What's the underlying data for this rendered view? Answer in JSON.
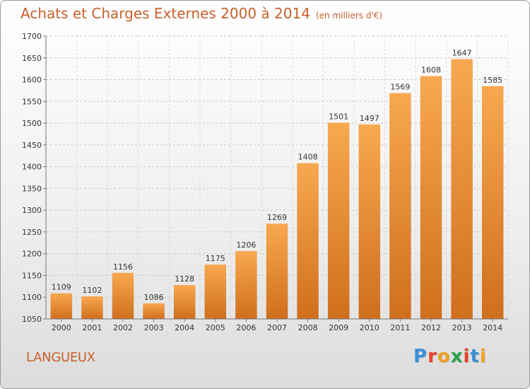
{
  "header": {
    "title": "Achats et Charges Externes 2000 à 2014",
    "subtitle": "(en milliers d'€)"
  },
  "footer": {
    "commune": "LANGUEUX",
    "logo_text": "Proxiti",
    "logo_colors": [
      "#3a8fd8",
      "#e8402a",
      "#f0a020",
      "#2aa04a",
      "#e8402a",
      "#3a8fd8",
      "#f0a020"
    ]
  },
  "chart_data": {
    "type": "bar",
    "categories": [
      "2000",
      "2001",
      "2002",
      "2003",
      "2004",
      "2005",
      "2006",
      "2007",
      "2008",
      "2009",
      "2010",
      "2011",
      "2012",
      "2013",
      "2014"
    ],
    "values": [
      1109,
      1102,
      1156,
      1086,
      1128,
      1175,
      1206,
      1269,
      1408,
      1501,
      1497,
      1569,
      1608,
      1647,
      1585
    ],
    "ylim": [
      1050,
      1700
    ],
    "yticks": [
      1050,
      1100,
      1150,
      1200,
      1250,
      1300,
      1350,
      1400,
      1450,
      1500,
      1550,
      1600,
      1650,
      1700
    ],
    "grid": "horizontal dashed",
    "bar_color": "#f0a050"
  }
}
